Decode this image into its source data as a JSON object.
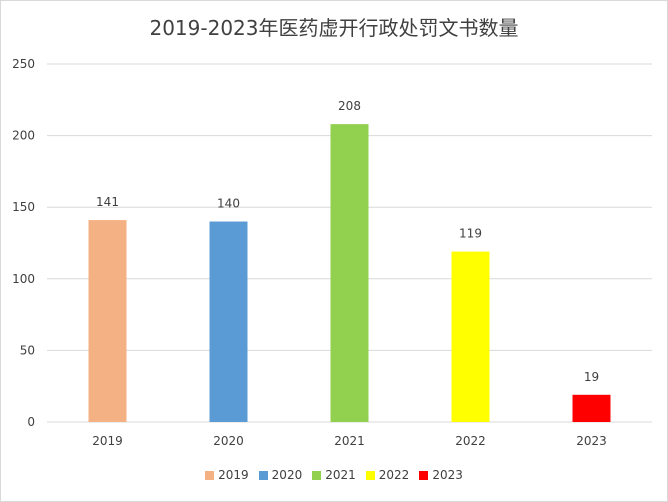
{
  "chart_data": {
    "type": "bar",
    "title": "2019-2023年医药虚开行政处罚文书数量",
    "categories": [
      "2019",
      "2020",
      "2021",
      "2022",
      "2023"
    ],
    "values": [
      141,
      140,
      208,
      119,
      19
    ],
    "colors": [
      "#f4b183",
      "#5b9bd5",
      "#92d050",
      "#ffff00",
      "#ff0000"
    ],
    "ylim": [
      0,
      250
    ],
    "yticks": [
      0,
      50,
      100,
      150,
      200,
      250
    ],
    "grid": true,
    "legend_position": "bottom",
    "data_labels": true
  }
}
